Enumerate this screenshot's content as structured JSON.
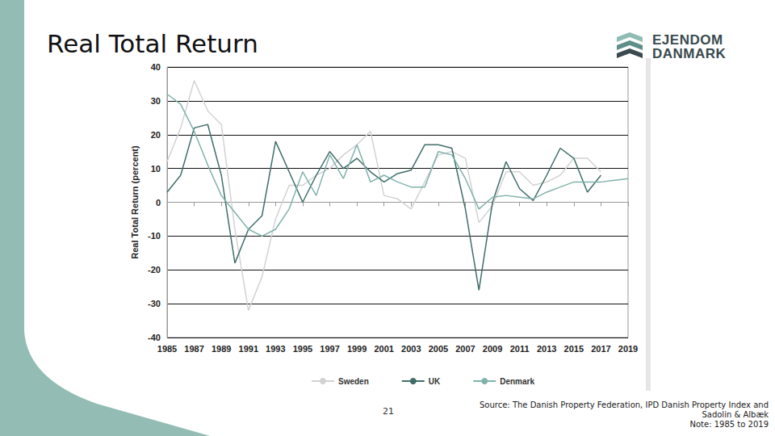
{
  "slide": {
    "title": "Real Total Return",
    "logo": [
      "EJENDOM",
      "DANMARK"
    ],
    "page": "21",
    "source": [
      "Source: The Danish Property Federation, IPD Danish Property Index and",
      "Sadolin & Albæk",
      "Note: 1985 to 2019"
    ]
  },
  "chart_data": {
    "type": "line",
    "y_label": "Real Total Return (percent)",
    "x": [
      1985,
      1986,
      1987,
      1988,
      1989,
      1990,
      1991,
      1992,
      1993,
      1994,
      1995,
      1996,
      1997,
      1998,
      1999,
      2000,
      2001,
      2002,
      2003,
      2004,
      2005,
      2006,
      2007,
      2008,
      2009,
      2010,
      2011,
      2012,
      2013,
      2014,
      2015,
      2016,
      2017,
      2018,
      2019
    ],
    "series": [
      {
        "name": "Sweden",
        "color": "#d2d2d2",
        "values": [
          12,
          22,
          36,
          27,
          23,
          -8,
          -32,
          -22,
          -5,
          5,
          5,
          8,
          10,
          14,
          17,
          21,
          2,
          1,
          -2,
          6,
          14,
          15,
          13,
          -6,
          -1,
          9,
          9,
          5,
          6,
          8,
          13,
          13,
          9,
          null,
          null
        ]
      },
      {
        "name": "UK",
        "color": "#3f6e69",
        "values": [
          3,
          8,
          22,
          23,
          8,
          -18,
          -8,
          -4,
          18,
          9,
          0,
          8,
          15,
          10,
          13,
          9,
          6,
          8.5,
          9.5,
          17,
          17,
          16,
          -2,
          -26,
          0,
          12,
          4,
          0.5,
          8,
          16,
          13,
          3,
          8,
          null,
          null
        ]
      },
      {
        "name": "Denmark",
        "color": "#80b2ab",
        "values": [
          32,
          29,
          21,
          11,
          2,
          -3,
          -8,
          -10,
          -8,
          -2,
          9,
          2,
          14,
          7,
          17,
          6,
          8,
          6,
          4.5,
          4.5,
          15,
          14,
          7,
          -2,
          1.5,
          2,
          1.5,
          1,
          3,
          4.5,
          6,
          6,
          6,
          6.5,
          7
        ]
      }
    ],
    "xlim": [
      1985,
      2019
    ],
    "xticks": [
      1985,
      1987,
      1989,
      1991,
      1993,
      1995,
      1997,
      1999,
      2001,
      2003,
      2005,
      2007,
      2009,
      2011,
      2013,
      2015,
      2017,
      2019
    ],
    "ylim": [
      -40,
      40
    ],
    "yticks": [
      -40,
      -30,
      -20,
      -10,
      0,
      10,
      20,
      30,
      40
    ],
    "grid": true,
    "legend": "bottom"
  }
}
